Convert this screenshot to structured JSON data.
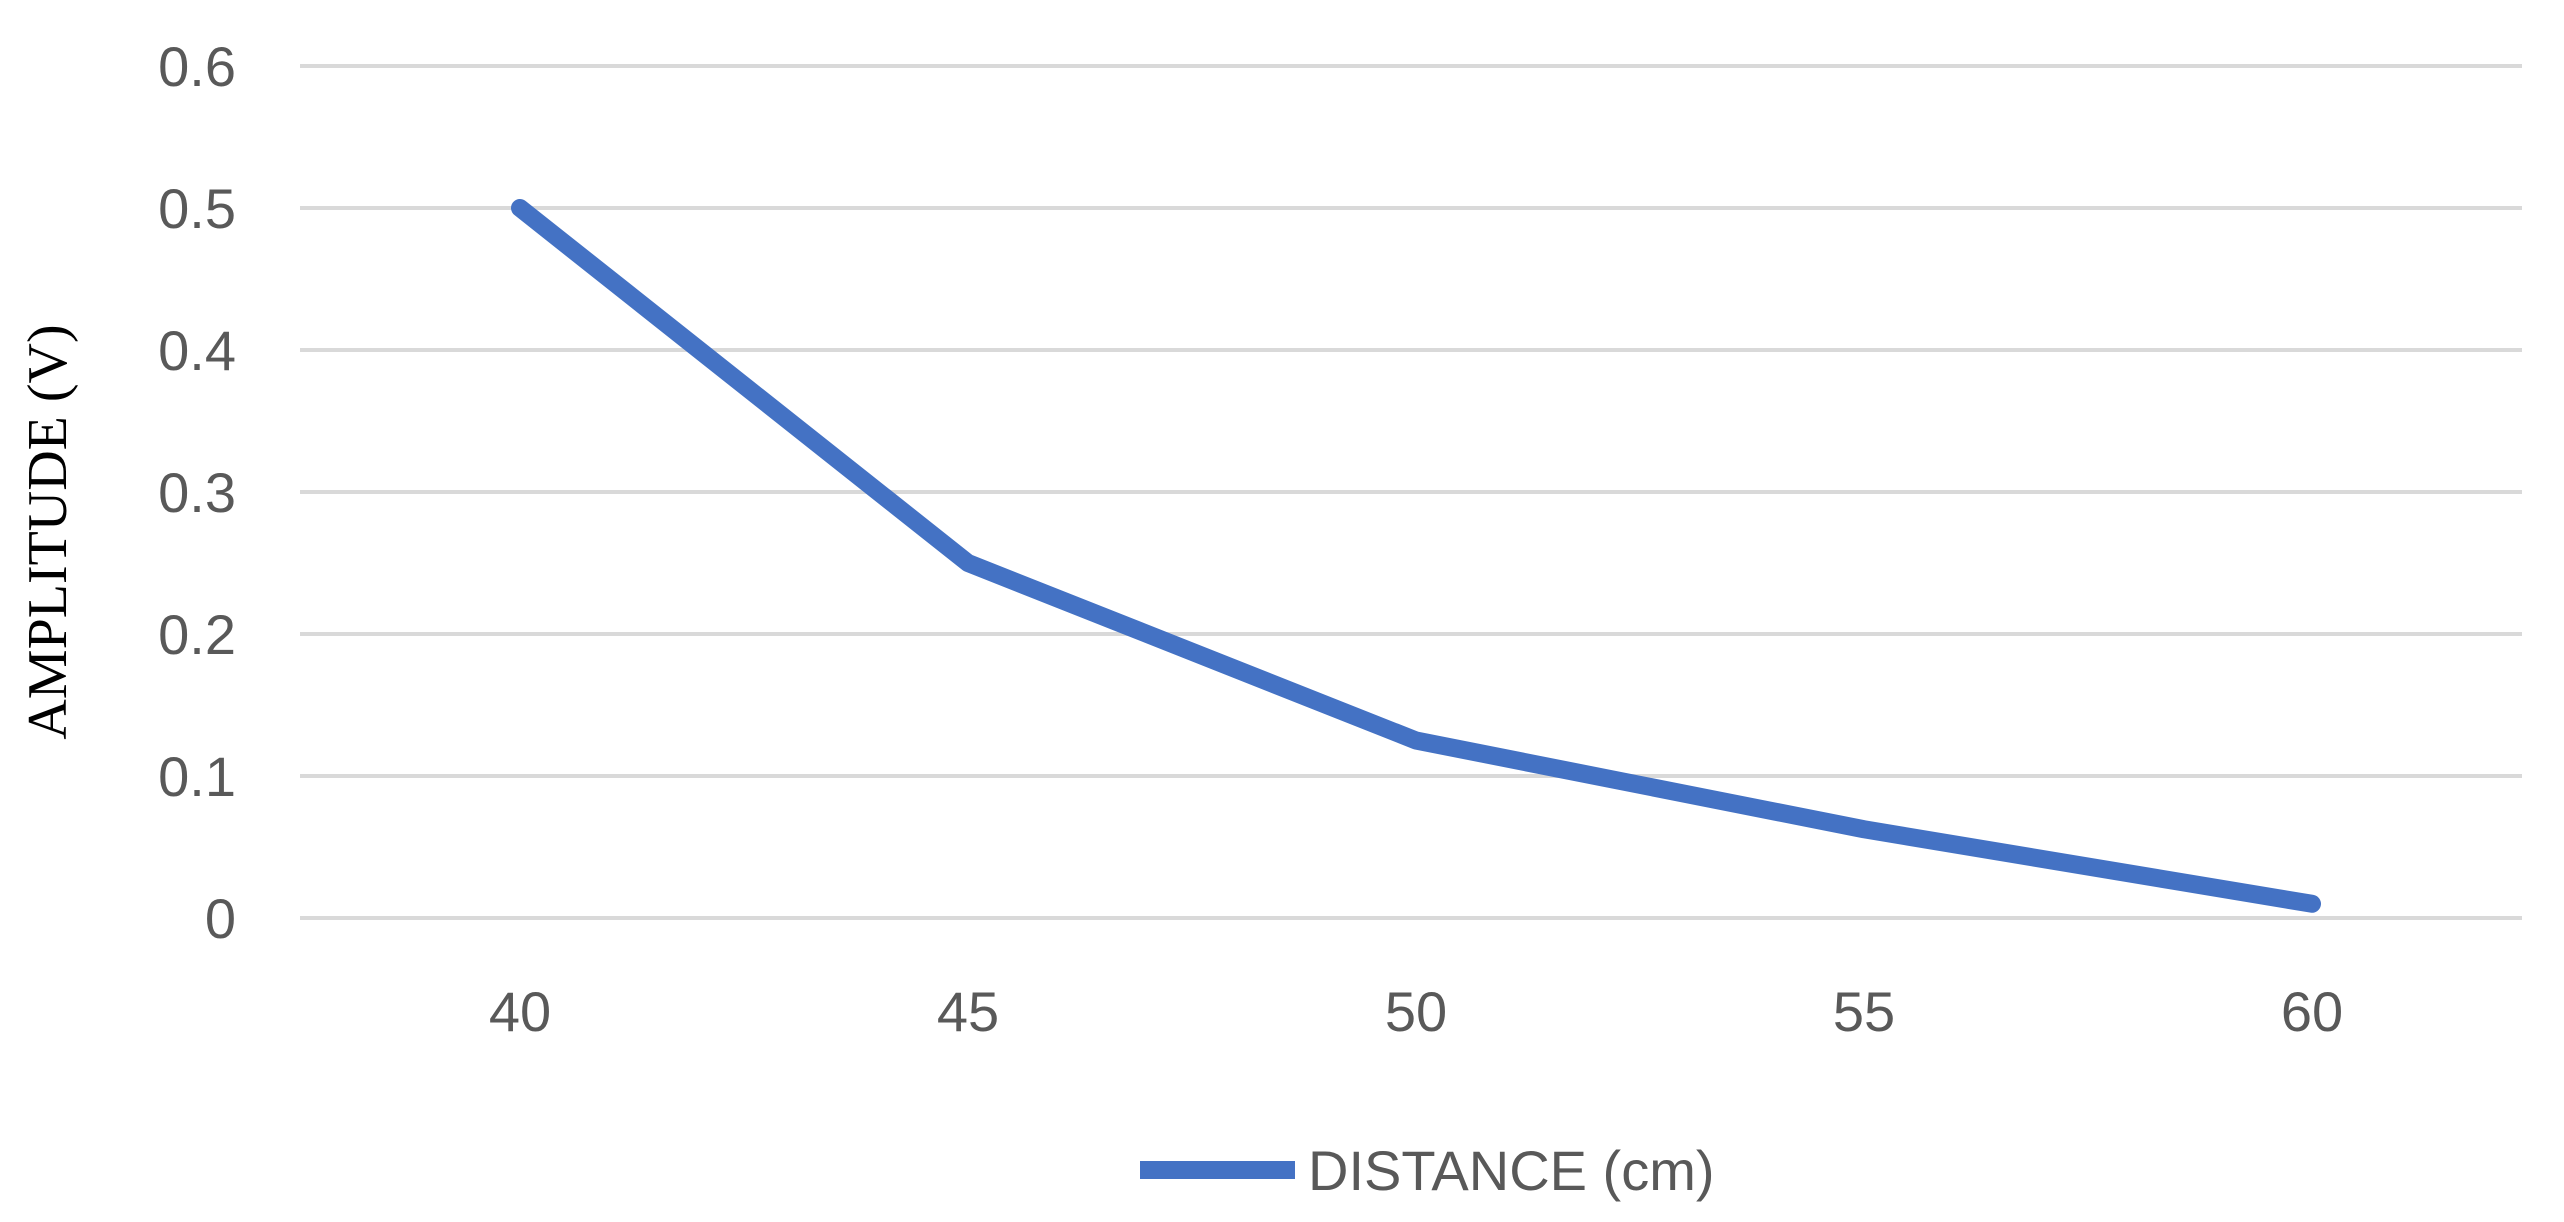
{
  "chart_data": {
    "type": "line",
    "x": [
      40,
      45,
      50,
      55,
      60
    ],
    "categories": [
      "40",
      "45",
      "50",
      "55",
      "60"
    ],
    "series": [
      {
        "name": "DISTANCE (cm)",
        "values": [
          0.5,
          0.25,
          0.125,
          0.0625,
          0.01
        ],
        "color": "#4472c4"
      }
    ],
    "ylabel": "AMPLITUDE (V)",
    "ylim": [
      0,
      0.6
    ],
    "yticks": [
      "0",
      "0.1",
      "0.2",
      "0.3",
      "0.4",
      "0.5",
      "0.6"
    ],
    "grid": true,
    "legend": "bottom"
  }
}
